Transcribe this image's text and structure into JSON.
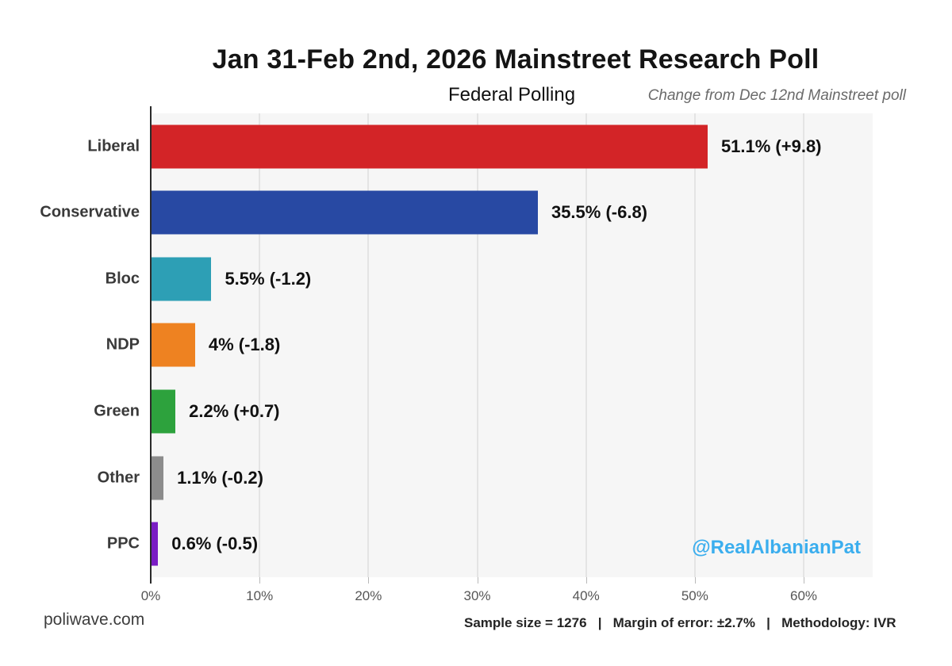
{
  "header": {
    "title": "Jan 31-Feb 2nd, 2026 Mainstreet Research Poll",
    "subtitle": "Federal Polling",
    "annotation": "Change from Dec 12nd Mainstreet poll"
  },
  "chart_data": {
    "type": "bar",
    "orientation": "horizontal",
    "title": "Jan 31-Feb 2nd, 2026 Mainstreet Research Poll",
    "subtitle": "Federal Polling",
    "categories": [
      "Liberal",
      "Conservative",
      "Bloc",
      "NDP",
      "Green",
      "Other",
      "PPC"
    ],
    "values": [
      51.1,
      35.5,
      5.5,
      4,
      2.2,
      1.1,
      0.6
    ],
    "changes": [
      9.8,
      -6.8,
      -1.2,
      -1.8,
      0.7,
      -0.2,
      -0.5
    ],
    "value_labels": [
      "51.1% (+9.8)",
      "35.5% (-6.8)",
      "5.5% (-1.2)",
      "4% (-1.8)",
      "2.2% (+0.7)",
      "1.1% (-0.2)",
      "0.6% (-0.5)"
    ],
    "bar_colors": [
      "#d32427",
      "#2849a3",
      "#2d9fb5",
      "#ee8221",
      "#2da23d",
      "#8c8c8c",
      "#7a1cc4"
    ],
    "x_ticks": [
      "0%",
      "10%",
      "20%",
      "30%",
      "40%",
      "50%",
      "60%"
    ],
    "x_tick_values": [
      0,
      10,
      20,
      30,
      40,
      50,
      60
    ],
    "x_max": 66.34,
    "xlim": [
      0,
      66.34
    ],
    "grid": true,
    "legend": false,
    "plot_background": "#f6f6f6",
    "gridline_color": "#e4e4e4"
  },
  "watermark": {
    "handle": "@RealAlbanianPat",
    "color": "#3baeee"
  },
  "footer": {
    "site": "poliwave.com",
    "stats": "Sample size = 1276   |   Margin of error: ±2.7%   |   Methodology: IVR"
  }
}
